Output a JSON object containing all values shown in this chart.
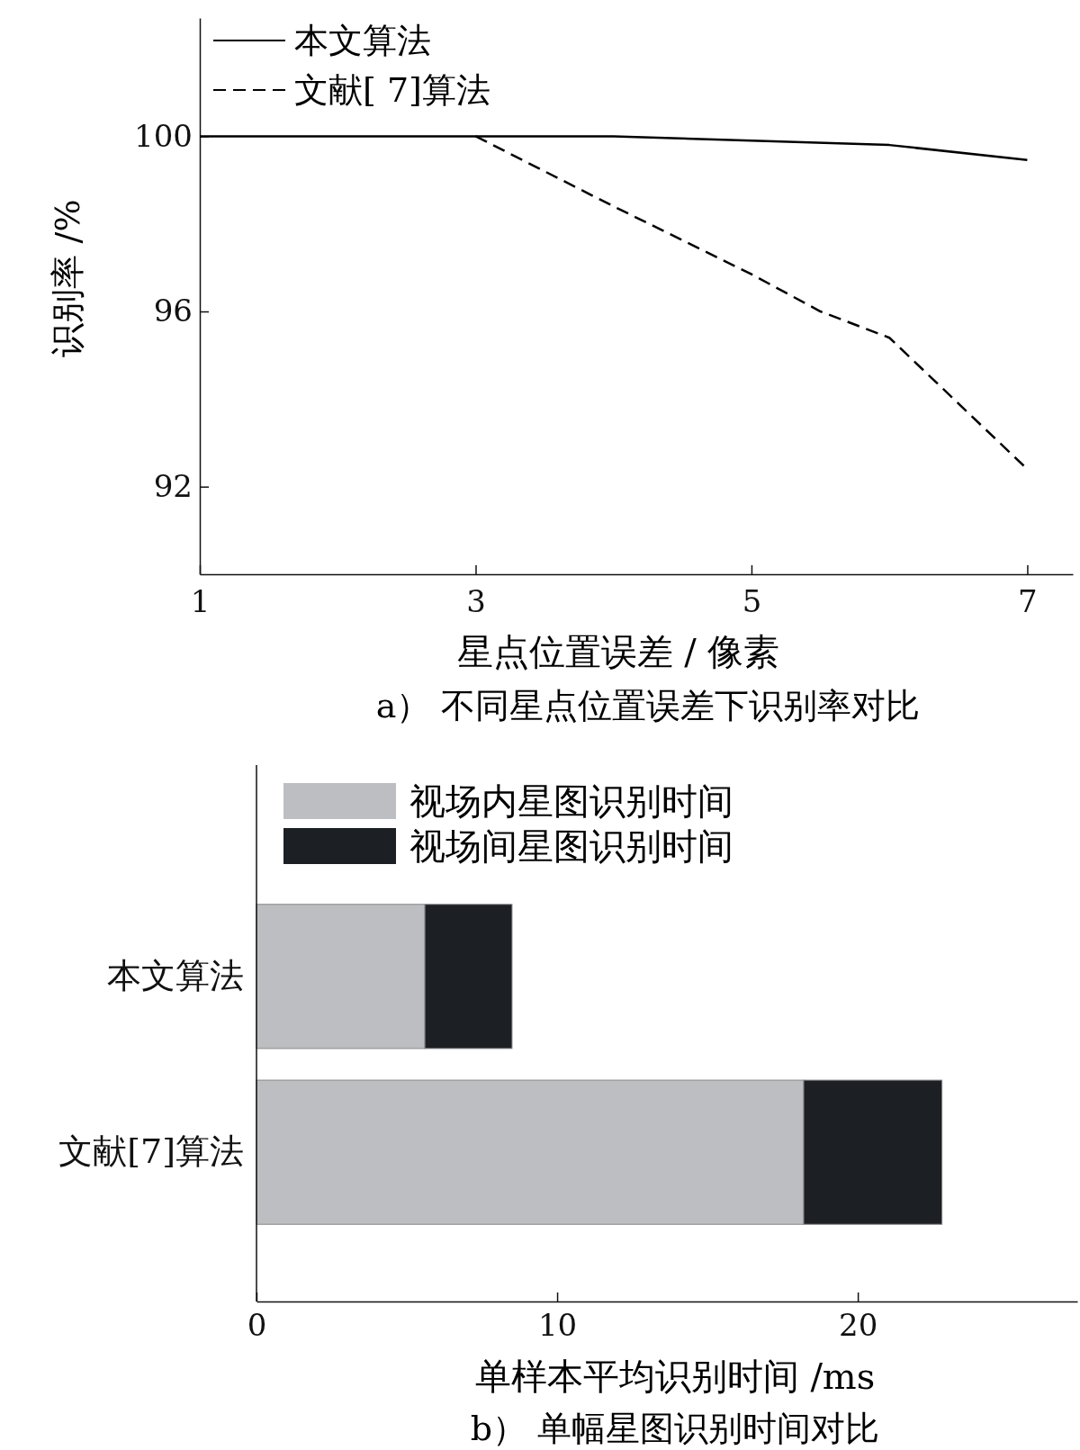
{
  "chart_data": [
    {
      "type": "line",
      "title": "a） 不同星点位置误差下识别率对比",
      "xlabel": "星点位置误差 / 像素",
      "ylabel": "识别率 /%",
      "xlim": [
        1,
        7.33
      ],
      "xticks": [
        1,
        3,
        5,
        7
      ],
      "ylim": [
        90,
        102.7
      ],
      "yticks": [
        92,
        96,
        100
      ],
      "grid": false,
      "legend": "top left",
      "marker": "none",
      "series": [
        {
          "name": "本文算法",
          "color": "#000000",
          "line_style": "solid",
          "x": [
            1,
            2,
            3,
            4,
            5,
            6,
            7
          ],
          "values": [
            100,
            100,
            100,
            100,
            99.9,
            99.8,
            99.46
          ]
        },
        {
          "name": "文献[ 7]算法",
          "color": "#000000",
          "line_style": "dashed",
          "x": [
            3,
            4,
            5,
            5.5,
            6,
            7
          ],
          "values": [
            100,
            98.4,
            96.85,
            96.0,
            95.4,
            92.4
          ]
        }
      ]
    },
    {
      "type": "bar",
      "orientation": "horizontal",
      "stacked": true,
      "title": "b） 单幅星图识别时间对比",
      "xlabel": "单样本平均识别时间 /ms",
      "categories": [
        "本文算法",
        "文献[7]算法"
      ],
      "xlim": [
        0,
        27.3
      ],
      "xticks": [
        0,
        10,
        20
      ],
      "grid": false,
      "legend": "top left",
      "series": [
        {
          "name": "视场内星图识别时间",
          "color": "#bdbec2",
          "values": [
            5.6,
            18.2
          ]
        },
        {
          "name": "视场间星图识别时间",
          "color": "#1c1f24",
          "values": [
            2.9,
            4.6
          ]
        }
      ]
    }
  ]
}
